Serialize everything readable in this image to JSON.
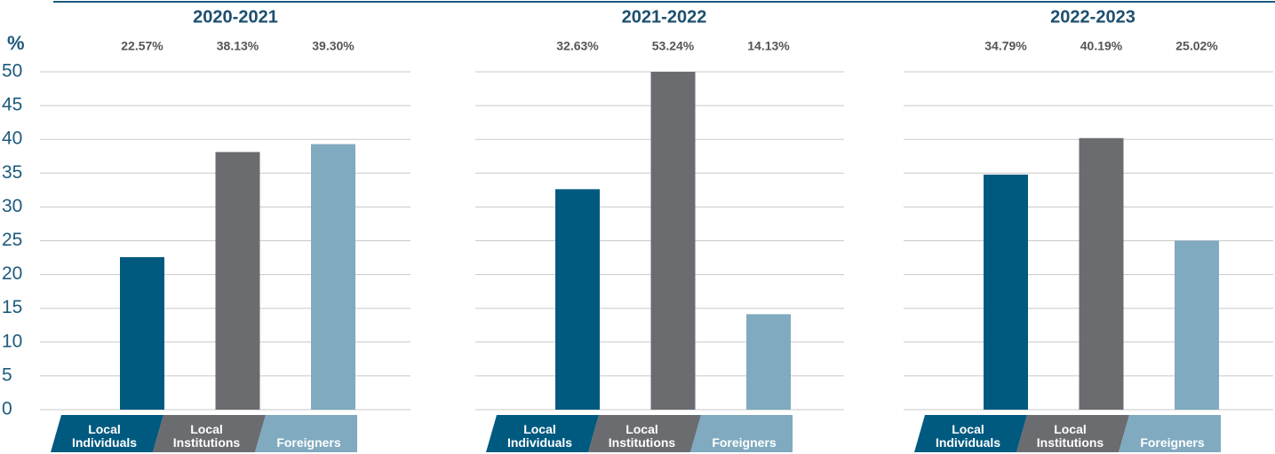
{
  "chart_data": [
    {
      "type": "bar",
      "title": "2020-2021",
      "y_label": "%",
      "categories": [
        "Local Individuals",
        "Local Institutions",
        "Foreigners"
      ],
      "values": [
        22.57,
        38.13,
        39.3
      ],
      "value_labels": [
        "22.57%",
        "38.13%",
        "39.30%"
      ],
      "colors": [
        "#005a80",
        "#6b6c70",
        "#80aabf"
      ],
      "ylim": [
        0,
        50
      ],
      "yticks": [
        0,
        5,
        10,
        15,
        20,
        25,
        30,
        35,
        40,
        45,
        50
      ],
      "grid": true
    },
    {
      "type": "bar",
      "title": "2021-2022",
      "categories": [
        "Local Individuals",
        "Local Institutions",
        "Foreigners"
      ],
      "values": [
        32.63,
        53.24,
        14.13
      ],
      "value_labels": [
        "32.63%",
        "53.24%",
        "14.13%"
      ],
      "colors": [
        "#005a80",
        "#6b6c70",
        "#80aabf"
      ],
      "ylim": [
        0,
        50
      ],
      "grid": true
    },
    {
      "type": "bar",
      "title": "2022-2023",
      "categories": [
        "Local Individuals",
        "Local Institutions",
        "Foreigners"
      ],
      "values": [
        34.79,
        40.19,
        25.02
      ],
      "value_labels": [
        "34.79%",
        "40.19%",
        "25.02%"
      ],
      "colors": [
        "#005a80",
        "#6b6c70",
        "#80aabf"
      ],
      "ylim": [
        0,
        50
      ],
      "grid": true
    }
  ]
}
